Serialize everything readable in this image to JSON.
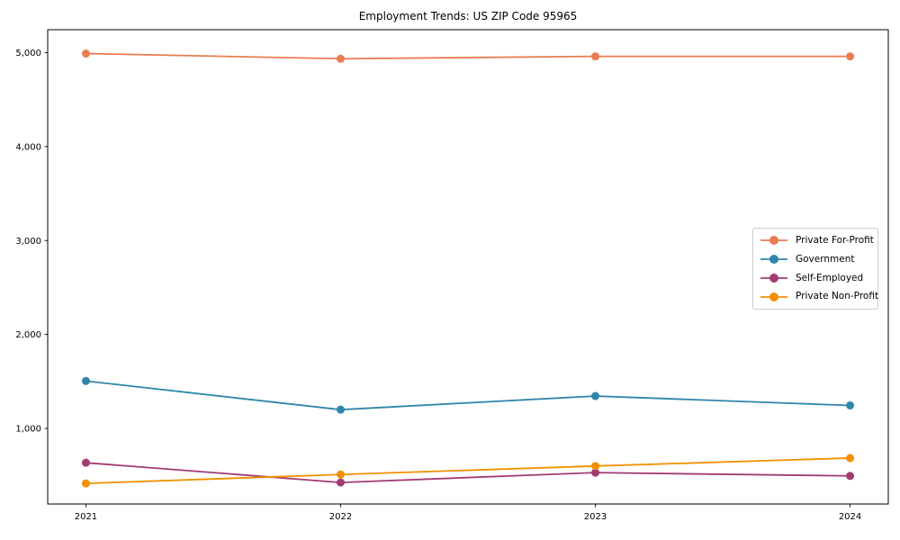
{
  "chart_data": {
    "type": "line",
    "title": "Employment Trends: US ZIP Code 95965",
    "x": [
      2021,
      2022,
      2023,
      2024
    ],
    "x_tick_labels": [
      "2021",
      "2022",
      "2023",
      "2024"
    ],
    "y_ticks": [
      1000,
      2000,
      3000,
      4000,
      5000
    ],
    "y_tick_labels": [
      "1,000",
      "2,000",
      "3,000",
      "4,000",
      "5,000"
    ],
    "xlim": [
      2020.85,
      2024.15
    ],
    "ylim": [
      196,
      5244
    ],
    "xlabel": "",
    "ylabel": "",
    "grid": false,
    "marker": "circle",
    "axis_color": "#000000",
    "text_color": "#000000",
    "legend": {
      "position": "center-right",
      "border_color": "#cccccc",
      "background": "#ffffff"
    },
    "series": [
      {
        "name": "Private For-Profit",
        "color": "#E97C50",
        "values": [
          4990,
          4935,
          4960,
          4960
        ]
      },
      {
        "name": "Government",
        "color": "#2E86AB",
        "values": [
          1505,
          1200,
          1345,
          1245
        ]
      },
      {
        "name": "Self-Employed",
        "color": "#A23B72",
        "values": [
          635,
          425,
          530,
          495
        ]
      },
      {
        "name": "Private Non-Profit",
        "color": "#F18F01",
        "values": [
          415,
          510,
          600,
          685
        ]
      }
    ]
  }
}
